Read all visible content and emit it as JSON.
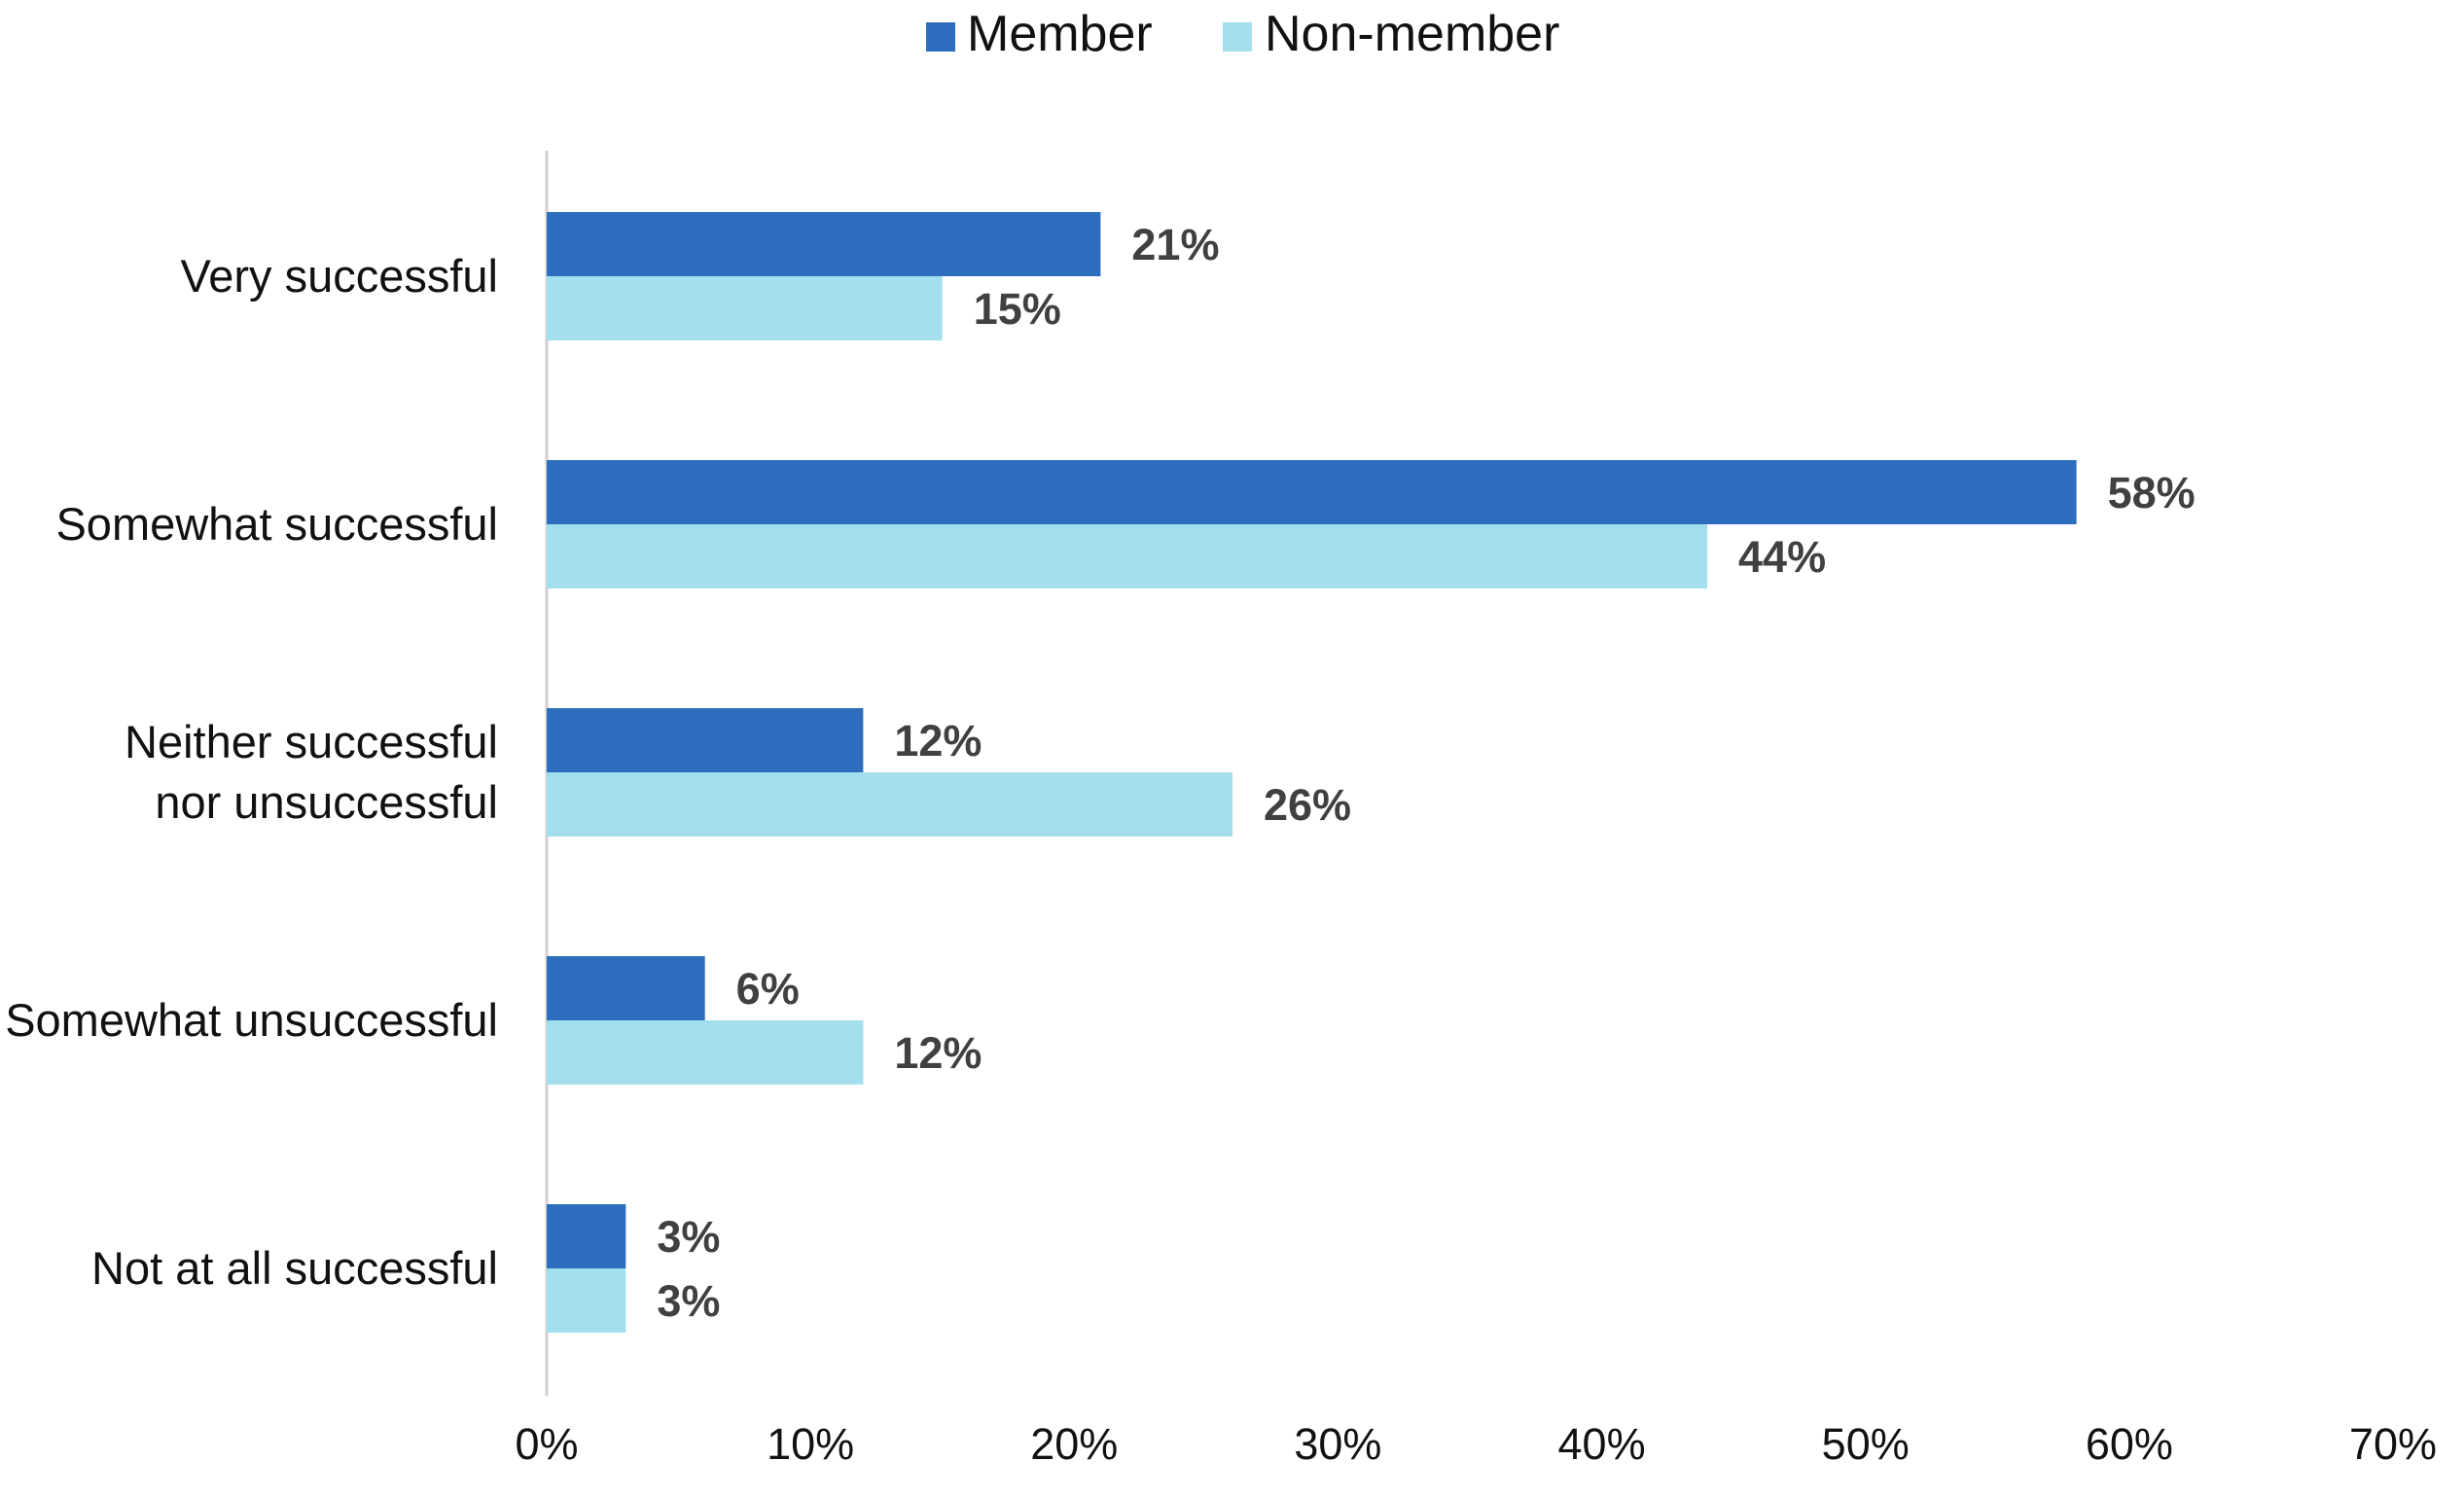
{
  "chart_data": {
    "type": "bar",
    "orientation": "horizontal",
    "title": "",
    "xlabel": "",
    "ylabel": "",
    "categories": [
      [
        "Very successful"
      ],
      [
        "Somewhat successful"
      ],
      [
        "Neither successful",
        "nor unsuccessful"
      ],
      [
        "Somewhat unsuccessful"
      ],
      [
        "Not at all successful"
      ]
    ],
    "series": [
      {
        "name": "Member",
        "color": "#2E6DBE",
        "values": [
          21,
          58,
          12,
          6,
          3
        ],
        "labels": [
          "21%",
          "58%",
          "12%",
          "6%",
          "3%"
        ]
      },
      {
        "name": "Non-member",
        "color": "#A4DFEE",
        "values": [
          15,
          44,
          26,
          12,
          3
        ],
        "labels": [
          "15%",
          "44%",
          "26%",
          "12%",
          "3%"
        ]
      }
    ],
    "xlim": [
      0,
      70
    ],
    "xticks": [
      0,
      10,
      20,
      30,
      40,
      50,
      60,
      70
    ],
    "xtick_labels": [
      "0%",
      "10%",
      "20%",
      "30%",
      "40%",
      "50%",
      "60%",
      "70%"
    ],
    "grid": false,
    "legend_position": "top-center",
    "axis_color": "#D0D0D0"
  }
}
